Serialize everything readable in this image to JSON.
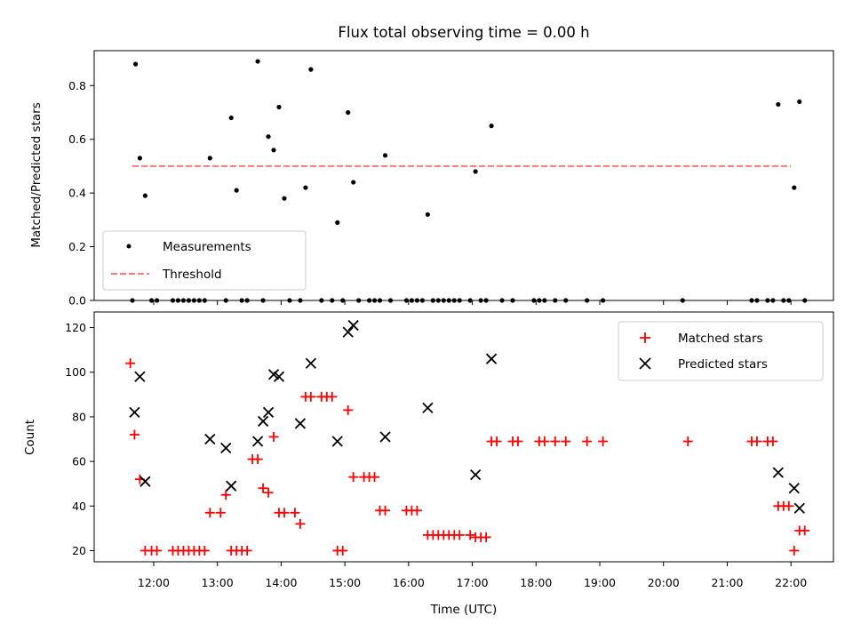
{
  "chart_data": [
    {
      "type": "scatter",
      "title": "Flux total observing time = 0.00 h",
      "xlabel": "",
      "ylabel": "Matched/Predicted stars",
      "xlim": [
        "11:04",
        "22:40"
      ],
      "ylim": [
        0,
        0.93
      ],
      "yticks": [
        "0.0",
        "0.2",
        "0.4",
        "0.6",
        "0.8"
      ],
      "legend_position": "lower-left",
      "legend": [
        "Measurements",
        "Threshold"
      ],
      "threshold": {
        "name": "Threshold",
        "value": 0.5,
        "x_start": "11:40",
        "x_end": "22:00",
        "color": "#ff7777"
      },
      "series": [
        {
          "name": "Measurements",
          "color": "#000000",
          "points": [
            [
              "11:40",
              0
            ],
            [
              "11:43",
              0.88
            ],
            [
              "11:47",
              0.53
            ],
            [
              "11:52",
              0.39
            ],
            [
              "11:58",
              0
            ],
            [
              "12:03",
              0
            ],
            [
              "12:18",
              0
            ],
            [
              "12:23",
              0
            ],
            [
              "12:28",
              0
            ],
            [
              "12:33",
              0
            ],
            [
              "12:38",
              0
            ],
            [
              "12:43",
              0
            ],
            [
              "12:48",
              0
            ],
            [
              "12:53",
              0.53
            ],
            [
              "13:08",
              0
            ],
            [
              "13:13",
              0.68
            ],
            [
              "13:18",
              0.41
            ],
            [
              "13:23",
              0
            ],
            [
              "13:28",
              0
            ],
            [
              "13:38",
              0.89
            ],
            [
              "13:43",
              0
            ],
            [
              "13:48",
              0.61
            ],
            [
              "13:53",
              0.56
            ],
            [
              "13:58",
              0.72
            ],
            [
              "14:03",
              0.38
            ],
            [
              "14:08",
              0
            ],
            [
              "14:18",
              0
            ],
            [
              "14:23",
              0.42
            ],
            [
              "14:28",
              0.86
            ],
            [
              "14:38",
              0
            ],
            [
              "14:48",
              0
            ],
            [
              "14:53",
              0.29
            ],
            [
              "14:58",
              0
            ],
            [
              "15:03",
              0.7
            ],
            [
              "15:08",
              0.44
            ],
            [
              "15:13",
              0
            ],
            [
              "15:23",
              0
            ],
            [
              "15:28",
              0
            ],
            [
              "15:33",
              0
            ],
            [
              "15:38",
              0.54
            ],
            [
              "15:43",
              0
            ],
            [
              "15:58",
              0
            ],
            [
              "16:03",
              0
            ],
            [
              "16:08",
              0
            ],
            [
              "16:13",
              0
            ],
            [
              "16:18",
              0.32
            ],
            [
              "16:23",
              0
            ],
            [
              "16:28",
              0
            ],
            [
              "16:33",
              0
            ],
            [
              "16:38",
              0
            ],
            [
              "16:43",
              0
            ],
            [
              "16:48",
              0
            ],
            [
              "16:58",
              0
            ],
            [
              "17:03",
              0.48
            ],
            [
              "17:08",
              0
            ],
            [
              "17:13",
              0
            ],
            [
              "17:18",
              0.65
            ],
            [
              "17:28",
              0
            ],
            [
              "17:38",
              0
            ],
            [
              "17:58",
              0
            ],
            [
              "18:03",
              0
            ],
            [
              "18:08",
              0
            ],
            [
              "18:18",
              0
            ],
            [
              "18:28",
              0
            ],
            [
              "18:48",
              0
            ],
            [
              "19:03",
              0
            ],
            [
              "20:18",
              0
            ],
            [
              "21:23",
              0
            ],
            [
              "21:28",
              0
            ],
            [
              "21:38",
              0
            ],
            [
              "21:43",
              0
            ],
            [
              "21:48",
              0.73
            ],
            [
              "21:53",
              0
            ],
            [
              "21:58",
              0
            ],
            [
              "22:03",
              0.42
            ],
            [
              "22:08",
              0.74
            ],
            [
              "22:13",
              0
            ]
          ]
        }
      ]
    },
    {
      "type": "scatter",
      "title": "",
      "xlabel": "Time (UTC)",
      "ylabel": "Count",
      "xlim": [
        "11:04",
        "22:40"
      ],
      "ylim": [
        15,
        127
      ],
      "xticks": [
        "12:00",
        "13:00",
        "14:00",
        "15:00",
        "16:00",
        "17:00",
        "18:00",
        "19:00",
        "20:00",
        "21:00",
        "22:00"
      ],
      "yticks": [
        "20",
        "40",
        "60",
        "80",
        "100",
        "120"
      ],
      "legend_position": "top-right",
      "legend": [
        "Matched stars",
        "Predicted stars"
      ],
      "series": [
        {
          "name": "Matched stars",
          "marker": "plus",
          "color": "#ff0000",
          "points": [
            [
              "11:38",
              104
            ],
            [
              "11:42",
              72
            ],
            [
              "11:47",
              52
            ],
            [
              "11:52",
              20
            ],
            [
              "11:58",
              20
            ],
            [
              "12:03",
              20
            ],
            [
              "12:18",
              20
            ],
            [
              "12:23",
              20
            ],
            [
              "12:28",
              20
            ],
            [
              "12:33",
              20
            ],
            [
              "12:38",
              20
            ],
            [
              "12:43",
              20
            ],
            [
              "12:48",
              20
            ],
            [
              "12:53",
              37
            ],
            [
              "13:03",
              37
            ],
            [
              "13:08",
              45
            ],
            [
              "13:13",
              20
            ],
            [
              "13:18",
              20
            ],
            [
              "13:23",
              20
            ],
            [
              "13:28",
              20
            ],
            [
              "13:33",
              61
            ],
            [
              "13:38",
              61
            ],
            [
              "13:43",
              48
            ],
            [
              "13:48",
              46
            ],
            [
              "13:53",
              71
            ],
            [
              "13:58",
              37
            ],
            [
              "14:03",
              37
            ],
            [
              "14:13",
              37
            ],
            [
              "14:18",
              32
            ],
            [
              "14:23",
              89
            ],
            [
              "14:28",
              89
            ],
            [
              "14:38",
              89
            ],
            [
              "14:43",
              89
            ],
            [
              "14:48",
              89
            ],
            [
              "14:53",
              20
            ],
            [
              "14:58",
              20
            ],
            [
              "15:03",
              83
            ],
            [
              "15:08",
              53
            ],
            [
              "15:18",
              53
            ],
            [
              "15:23",
              53
            ],
            [
              "15:28",
              53
            ],
            [
              "15:33",
              38
            ],
            [
              "15:38",
              38
            ],
            [
              "15:58",
              38
            ],
            [
              "16:03",
              38
            ],
            [
              "16:08",
              38
            ],
            [
              "16:18",
              27
            ],
            [
              "16:23",
              27
            ],
            [
              "16:28",
              27
            ],
            [
              "16:33",
              27
            ],
            [
              "16:38",
              27
            ],
            [
              "16:43",
              27
            ],
            [
              "16:48",
              27
            ],
            [
              "16:58",
              27
            ],
            [
              "17:03",
              26
            ],
            [
              "17:08",
              26
            ],
            [
              "17:13",
              26
            ],
            [
              "17:18",
              69
            ],
            [
              "17:23",
              69
            ],
            [
              "17:38",
              69
            ],
            [
              "17:43",
              69
            ],
            [
              "18:03",
              69
            ],
            [
              "18:08",
              69
            ],
            [
              "18:18",
              69
            ],
            [
              "18:28",
              69
            ],
            [
              "18:48",
              69
            ],
            [
              "19:03",
              69
            ],
            [
              "20:23",
              69
            ],
            [
              "21:23",
              69
            ],
            [
              "21:28",
              69
            ],
            [
              "21:38",
              69
            ],
            [
              "21:43",
              69
            ],
            [
              "21:48",
              40
            ],
            [
              "21:53",
              40
            ],
            [
              "21:58",
              40
            ],
            [
              "22:03",
              20
            ],
            [
              "22:08",
              29
            ],
            [
              "22:13",
              29
            ]
          ]
        },
        {
          "name": "Predicted stars",
          "marker": "x",
          "color": "#000000",
          "points": [
            [
              "11:42",
              82
            ],
            [
              "11:47",
              98
            ],
            [
              "11:52",
              51
            ],
            [
              "12:53",
              70
            ],
            [
              "13:08",
              66
            ],
            [
              "13:13",
              49
            ],
            [
              "13:38",
              69
            ],
            [
              "13:43",
              78
            ],
            [
              "13:48",
              82
            ],
            [
              "13:53",
              99
            ],
            [
              "13:58",
              98
            ],
            [
              "14:18",
              77
            ],
            [
              "14:28",
              104
            ],
            [
              "14:53",
              69
            ],
            [
              "15:03",
              118
            ],
            [
              "15:08",
              121
            ],
            [
              "15:38",
              71
            ],
            [
              "16:18",
              84
            ],
            [
              "17:03",
              54
            ],
            [
              "17:18",
              106
            ],
            [
              "21:48",
              55
            ],
            [
              "22:03",
              48
            ],
            [
              "22:08",
              39
            ]
          ]
        }
      ]
    }
  ]
}
